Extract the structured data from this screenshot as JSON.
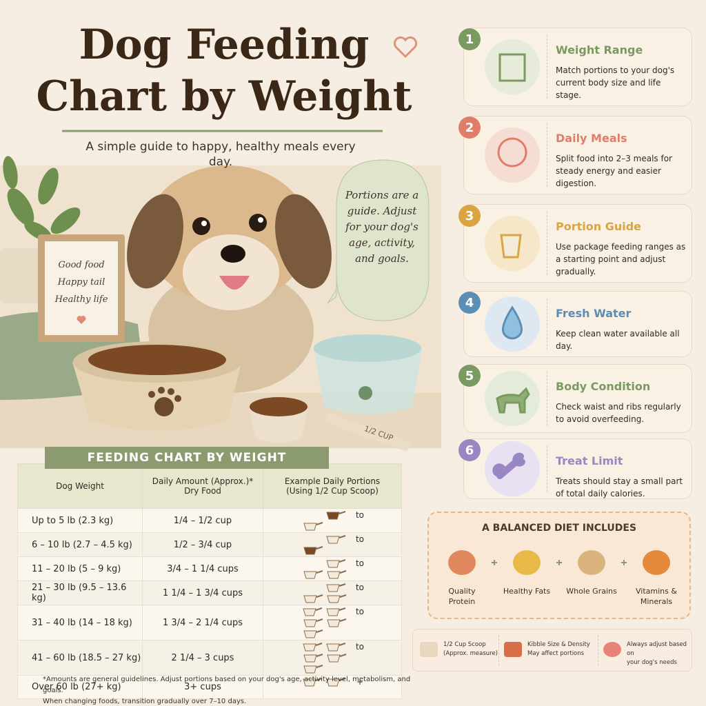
{
  "header": {
    "title": [
      "Dog Feeding",
      "Chart by Weight"
    ],
    "subtitle": "A simple guide to happy, healthy meals every day."
  },
  "frame_note": [
    "Good food",
    "Happy tail",
    "Healthy life"
  ],
  "speech_bubble": "Portions are a guide. Adjust for your dog's age, activity, and goals.",
  "scoop_label": "1/2 CUP",
  "table": {
    "title": "FEEDING CHART BY WEIGHT",
    "columns": [
      [
        "Dog Weight"
      ],
      [
        "Daily Amount (Approx.)*",
        "Dry Food"
      ],
      [
        "Example Daily Portions",
        "(Using 1/2 Cup Scoop)"
      ]
    ],
    "rows": [
      {
        "weight": "Up to 5 lb (2.3 kg)",
        "amount": "1/4 – 1/2 cup",
        "connector": "to"
      },
      {
        "weight": "6 – 10 lb (2.7 – 4.5 kg)",
        "amount": "1/2 – 3/4 cup",
        "connector": "to"
      },
      {
        "weight": "11 – 20 lb (5 – 9 kg)",
        "amount": "3/4 – 1 1/4 cups",
        "connector": "to"
      },
      {
        "weight": "21 – 30 lb (9.5 – 13.6 kg)",
        "amount": "1 1/4 – 1 3/4 cups",
        "connector": "to"
      },
      {
        "weight": "31 – 40 lb (14 – 18 kg)",
        "amount": "1 3/4 – 2 1/4 cups",
        "connector": "to"
      },
      {
        "weight": "41 – 60 lb (18.5 – 27 kg)",
        "amount": "2 1/4 – 3 cups",
        "connector": "to"
      },
      {
        "weight": "Over 60 lb (27+ kg)",
        "amount": "3+ cups",
        "connector": "+"
      }
    ]
  },
  "footnote": [
    "*Amounts are general guidelines. Adjust portions based on your dog's age, activity level, metabolism, and goals.",
    "When changing foods, transition gradually over 7–10 days."
  ],
  "steps": [
    {
      "number": 1,
      "title": "Weight Range",
      "text": "Match portions to your dog's current body size and life stage."
    },
    {
      "number": 2,
      "title": "Daily Meals",
      "text": "Split food into 2–3 meals for steady energy and easier digestion."
    },
    {
      "number": 3,
      "title": "Portion Guide",
      "text": "Use package feeding ranges as a starting point and adjust gradually."
    },
    {
      "number": 4,
      "title": "Fresh Water",
      "text": "Keep clean water available all day."
    },
    {
      "number": 5,
      "title": "Body Condition",
      "text": "Check waist and ribs regularly to avoid overfeeding."
    },
    {
      "number": 6,
      "title": "Treat Limit",
      "text": "Treats should stay a small part of total daily calories."
    }
  ],
  "diet": {
    "title": "A BALANCED DIET INCLUDES",
    "items": [
      "Quality Protein",
      "Healthy Fats",
      "Whole Grains",
      "Vitamins & Minerals"
    ]
  },
  "tips": [
    {
      "title": "1/2 Cup Scoop",
      "text": "(Approx. measure)"
    },
    {
      "title": "Kibble Size & Density",
      "text": "May affect portions"
    },
    {
      "title": "Always adjust based on",
      "text": "your dog's needs"
    }
  ]
}
